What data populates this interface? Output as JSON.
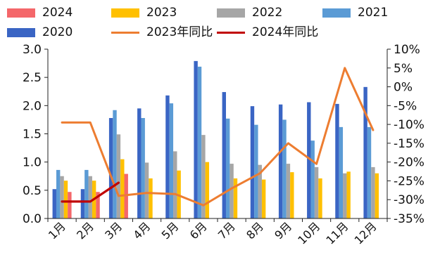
{
  "chart_data": {
    "type": "bar",
    "categories": [
      "1月",
      "2月",
      "3月",
      "4月",
      "5月",
      "6月",
      "7月",
      "8月",
      "9月",
      "10月",
      "11月",
      "12月"
    ],
    "series": [
      {
        "name": "2020",
        "color": "#3A65C4",
        "values": [
          0.52,
          0.52,
          1.78,
          1.95,
          2.18,
          2.79,
          2.24,
          1.99,
          2.02,
          2.06,
          2.03,
          2.33
        ]
      },
      {
        "name": "2021",
        "color": "#5B9BD5",
        "values": [
          0.86,
          0.86,
          1.92,
          1.78,
          2.04,
          2.69,
          1.77,
          1.66,
          1.75,
          1.38,
          1.62,
          1.62
        ]
      },
      {
        "name": "2022",
        "color": "#A6A6A6",
        "values": [
          0.75,
          0.75,
          1.49,
          0.99,
          1.19,
          1.48,
          0.97,
          0.95,
          0.97,
          0.91,
          0.8,
          0.91
        ]
      },
      {
        "name": "2023",
        "color": "#FFC000",
        "values": [
          0.67,
          0.67,
          1.05,
          0.71,
          0.85,
          1.0,
          0.71,
          0.69,
          0.82,
          0.71,
          0.83,
          0.8
        ]
      },
      {
        "name": "2024",
        "color": "#F4676A",
        "values": [
          0.47,
          0.47,
          0.79,
          null,
          null,
          null,
          null,
          null,
          null,
          null,
          null,
          null
        ]
      }
    ],
    "lines": [
      {
        "name": "2023年同比",
        "color": "#ED7D31",
        "axis": "right",
        "values": [
          -9.5,
          -9.5,
          -29.0,
          -28.2,
          -28.5,
          -31.5,
          -27.0,
          -23.0,
          -15.0,
          -20.5,
          5.0,
          -11.5
        ]
      },
      {
        "name": "2024年同比",
        "color": "#C00000",
        "axis": "right",
        "values": [
          -30.5,
          -30.5,
          -25.5,
          null,
          null,
          null,
          null,
          null,
          null,
          null,
          null,
          null
        ]
      }
    ],
    "legend_order": [
      "2024",
      "2023",
      "2022",
      "2021",
      "2020",
      "2023年同比",
      "2024年同比"
    ],
    "left_axis": {
      "ylim": [
        0,
        3.0
      ],
      "ticks": [
        "0.0",
        "0.5",
        "1.0",
        "1.5",
        "2.0",
        "2.5",
        "3.0"
      ]
    },
    "right_axis": {
      "ylim": [
        -35,
        10
      ],
      "ticks": [
        "-35%",
        "-30%",
        "-25%",
        "-20%",
        "-15%",
        "-10%",
        "-5%",
        "0%",
        "5%",
        "10%"
      ]
    },
    "grid": false,
    "legend_position": "top"
  }
}
